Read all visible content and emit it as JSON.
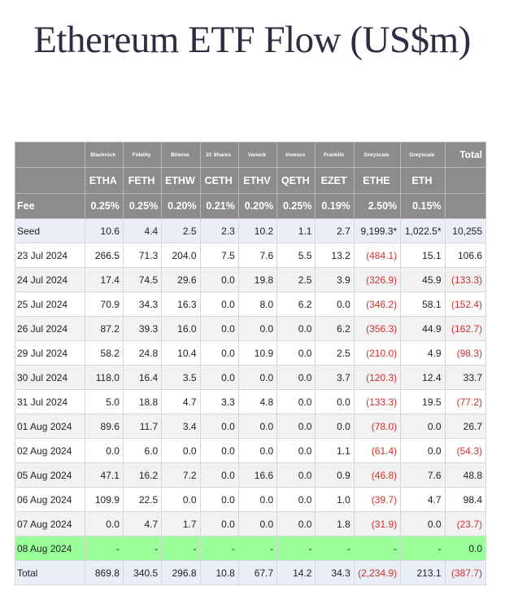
{
  "title": "Ethereum ETF Flow (US$m)",
  "colors": {
    "header_bg": "#8c8c8c",
    "negative": "#d0312d",
    "highlight_row": "#99ff99",
    "seed_total_row": "#e9eef8"
  },
  "chart_data": {
    "type": "table",
    "title": "Ethereum ETF Flow (US$m)",
    "providers": [
      "Blackrock",
      "Fidelity",
      "Bitwise",
      "21 Shares",
      "Vaneck",
      "Invesco",
      "Franklin",
      "Greyscale",
      "Greyscale"
    ],
    "total_label": "Total",
    "tickers": [
      "ETHA",
      "FETH",
      "ETHW",
      "CETH",
      "ETHV",
      "QETH",
      "EZET",
      "ETHE",
      "ETH"
    ],
    "fee_label": "Fee",
    "fees": [
      "0.25%",
      "0.25%",
      "0.20%",
      "0.21%",
      "0.20%",
      "0.25%",
      "0.19%",
      "2.50%",
      "0.15%"
    ],
    "rows": [
      {
        "label": "Seed",
        "cells": [
          "10.6",
          "4.4",
          "2.5",
          "2.3",
          "10.2",
          "1.1",
          "2.7",
          "9,199.3*",
          "1,022.5*",
          "10,255"
        ]
      },
      {
        "label": "23 Jul 2024",
        "cells": [
          "266.5",
          "71.3",
          "204.0",
          "7.5",
          "7.6",
          "5.5",
          "13.2",
          "(484.1)",
          "15.1",
          "106.6"
        ]
      },
      {
        "label": "24 Jul 2024",
        "cells": [
          "17.4",
          "74.5",
          "29.6",
          "0.0",
          "19.8",
          "2.5",
          "3.9",
          "(326.9)",
          "45.9",
          "(133.3)"
        ]
      },
      {
        "label": "25 Jul 2024",
        "cells": [
          "70.9",
          "34.3",
          "16.3",
          "0.0",
          "8.0",
          "6.2",
          "0.0",
          "(346.2)",
          "58.1",
          "(152.4)"
        ]
      },
      {
        "label": "26 Jul 2024",
        "cells": [
          "87.2",
          "39.3",
          "16.0",
          "0.0",
          "0.0",
          "0.0",
          "6.2",
          "(356.3)",
          "44.9",
          "(162.7)"
        ]
      },
      {
        "label": "29 Jul 2024",
        "cells": [
          "58.2",
          "24.8",
          "10.4",
          "0.0",
          "10.9",
          "0.0",
          "2.5",
          "(210.0)",
          "4.9",
          "(98.3)"
        ]
      },
      {
        "label": "30 Jul 2024",
        "cells": [
          "118.0",
          "16.4",
          "3.5",
          "0.0",
          "0.0",
          "0.0",
          "3.7",
          "(120.3)",
          "12.4",
          "33.7"
        ]
      },
      {
        "label": "31 Jul 2024",
        "cells": [
          "5.0",
          "18.8",
          "4.7",
          "3.3",
          "4.8",
          "0.0",
          "0.0",
          "(133.3)",
          "19.5",
          "(77.2)"
        ]
      },
      {
        "label": "01 Aug 2024",
        "cells": [
          "89.6",
          "11.7",
          "3.4",
          "0.0",
          "0.0",
          "0.0",
          "0.0",
          "(78.0)",
          "0.0",
          "26.7"
        ]
      },
      {
        "label": "02 Aug 2024",
        "cells": [
          "0.0",
          "6.0",
          "0.0",
          "0.0",
          "0.0",
          "0.0",
          "1.1",
          "(61.4)",
          "0.0",
          "(54.3)"
        ]
      },
      {
        "label": "05 Aug 2024",
        "cells": [
          "47.1",
          "16.2",
          "7.2",
          "0.0",
          "16.6",
          "0.0",
          "0.9",
          "(46.8)",
          "7.6",
          "48.8"
        ]
      },
      {
        "label": "06 Aug 2024",
        "cells": [
          "109.9",
          "22.5",
          "0.0",
          "0.0",
          "0.0",
          "0.0",
          "1.0",
          "(39.7)",
          "4.7",
          "98.4"
        ]
      },
      {
        "label": "07 Aug 2024",
        "cells": [
          "0.0",
          "4.7",
          "1.7",
          "0.0",
          "0.0",
          "0.0",
          "1.8",
          "(31.9)",
          "0.0",
          "(23.7)"
        ]
      },
      {
        "label": "08 Aug 2024",
        "highlight": true,
        "cells": [
          "-",
          "-",
          "-",
          "-",
          "-",
          "-",
          "-",
          "-",
          "-",
          "0.0"
        ]
      },
      {
        "label": "Total",
        "total": true,
        "cells": [
          "869.8",
          "340.5",
          "296.8",
          "10.8",
          "67.7",
          "14.2",
          "34.3",
          "(2,234.9)",
          "213.1",
          "(387.7)"
        ]
      }
    ]
  }
}
